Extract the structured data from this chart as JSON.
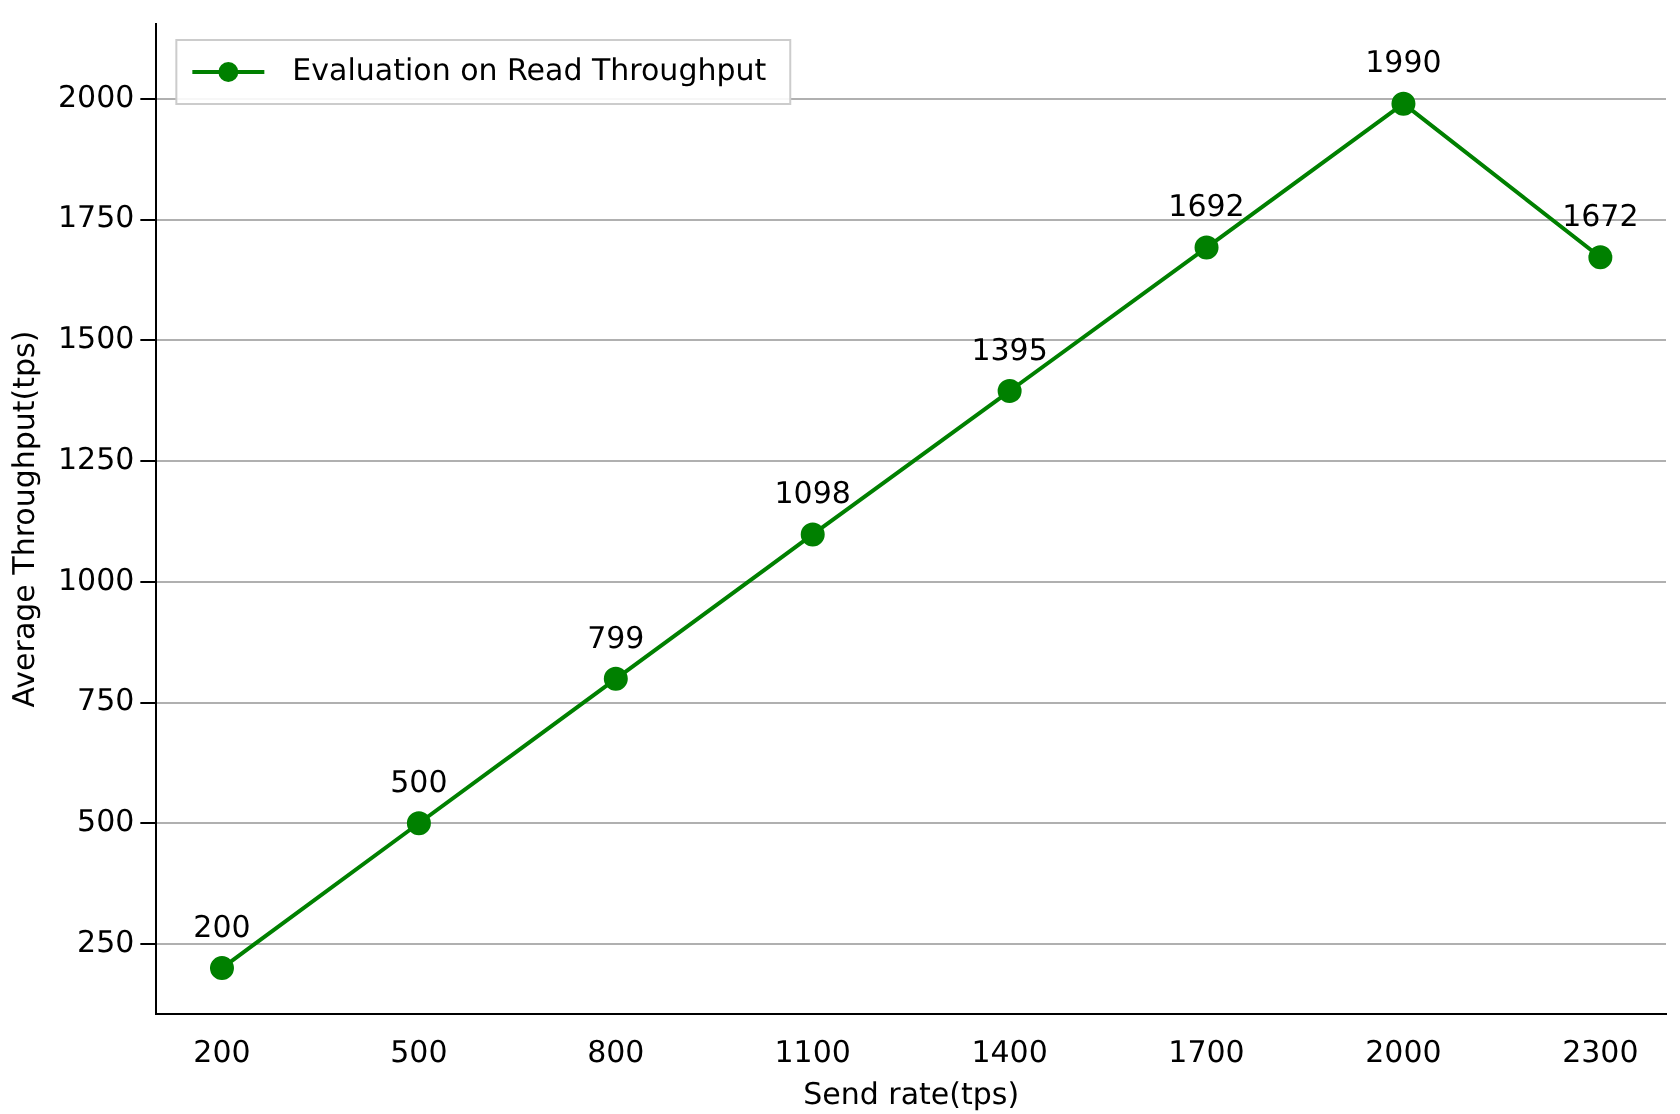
{
  "chart_data": {
    "type": "line",
    "xlabel": "Send rate(tps)",
    "ylabel": "Average Throughput(tps)",
    "x": [
      200,
      500,
      800,
      1100,
      1400,
      1700,
      2000,
      2300
    ],
    "series": [
      {
        "name": "Evaluation on Read Throughput",
        "color": "#008000",
        "values": [
          200,
          500,
          799,
          1098,
          1395,
          1692,
          1990,
          1672
        ]
      }
    ],
    "xlim": [
      100,
      2400
    ],
    "xticks": [
      200,
      500,
      800,
      1100,
      1400,
      1700,
      2000,
      2300
    ],
    "ylim": [
      105,
      2155
    ],
    "yticks": [
      250,
      500,
      750,
      1000,
      1250,
      1500,
      1750,
      2000
    ],
    "grid": "y",
    "legend": "top left",
    "marker": "circle",
    "line_style": "solid",
    "data_labels": true
  }
}
